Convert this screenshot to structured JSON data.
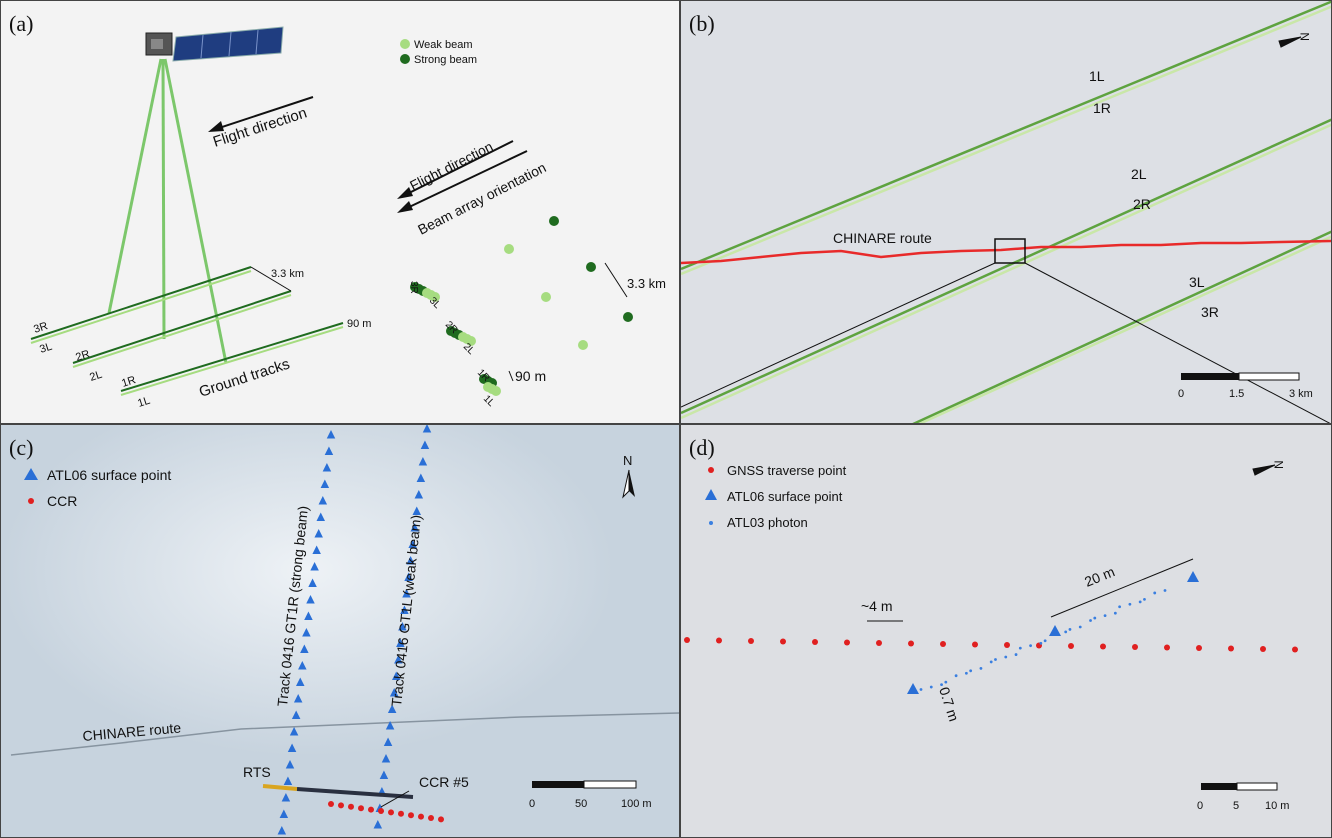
{
  "panel_a": {
    "label": "(a)",
    "legend_weak": "Weak beam",
    "legend_strong": "Strong beam",
    "flight_direction": "Flight direction",
    "beam_array_orientation": "Beam array orientation",
    "ground_tracks": "Ground tracks",
    "dist_3_3": "3.3 km",
    "dist_3_3b": "3.3 km",
    "dist_90": "90 m",
    "dist_90b": "90 m",
    "track_3R": "3R",
    "track_3L": "3L",
    "track_2R": "2R",
    "track_2L": "2L",
    "track_1R": "1R",
    "track_1L": "1L",
    "colors": {
      "weak": "#a6dc80",
      "strong": "#1f6b1f"
    }
  },
  "panel_b": {
    "label": "(b)",
    "north": "N",
    "track_1L": "1L",
    "track_1R": "1R",
    "track_2L": "2L",
    "track_2R": "2R",
    "track_3L": "3L",
    "track_3R": "3R",
    "route": "CHINARE route",
    "scale_0": "0",
    "scale_mid": "1.5",
    "scale_end": "3 km"
  },
  "panel_c": {
    "label": "(c)",
    "legend_atl06": "ATL06 surface point",
    "legend_ccr": "CCR",
    "north": "N",
    "track_strong": "Track 0416 GT1R (strong beam)",
    "track_weak": "Track 0416 GT1L (weak beam)",
    "route": "CHINARE route",
    "rts": "RTS",
    "ccr5": "CCR #5",
    "scale_0": "0",
    "scale_mid": "50",
    "scale_end": "100 m"
  },
  "panel_d": {
    "label": "(d)",
    "legend_gnss": "GNSS traverse point",
    "legend_atl06": "ATL06 surface point",
    "legend_atl03": "ATL03 photon",
    "north": "N",
    "dist_20": "20 m",
    "dist_4": "~4 m",
    "dist_07": "0.7 m",
    "scale_0": "0",
    "scale_mid": "5",
    "scale_end": "10 m",
    "colors": {
      "gnss": "#e02020",
      "atl06": "#2a6fd6",
      "atl03": "#3a7fe0"
    }
  }
}
